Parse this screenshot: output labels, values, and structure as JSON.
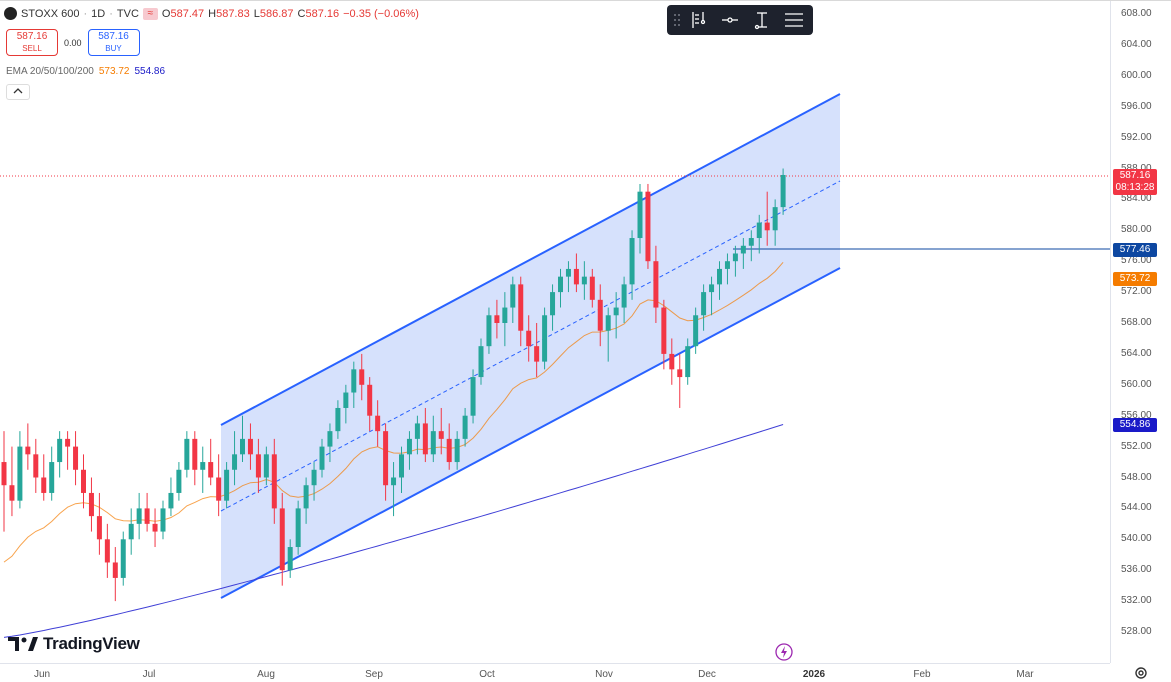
{
  "header": {
    "symbol": "STOXX 600",
    "interval": "1D",
    "source": "TVC",
    "market_badge": "≈",
    "ohlc": [
      {
        "key": "O",
        "value": "587.47"
      },
      {
        "key": "H",
        "value": "587.83"
      },
      {
        "key": "L",
        "value": "586.87"
      },
      {
        "key": "C",
        "value": "587.16"
      }
    ],
    "change": "−0.35 (−0.06%)"
  },
  "trade": {
    "sell_price": "587.16",
    "sell_label": "SELL",
    "spread": "0.00",
    "buy_price": "587.16",
    "buy_label": "BUY"
  },
  "indicator": {
    "name": "EMA 20/50/100/200",
    "value1": "573.72",
    "value2": "554.86"
  },
  "collapse_icon": "chevron-up-icon",
  "toolbar": {
    "icons": [
      "drag-handle-icon",
      "text-tool-icon",
      "line-tool-icon",
      "measure-tool-icon",
      "settings-lines-icon"
    ]
  },
  "price_axis": {
    "ticks": [
      "608.00",
      "604.00",
      "600.00",
      "596.00",
      "592.00",
      "588.00",
      "584.00",
      "580.00",
      "576.00",
      "572.00",
      "568.00",
      "564.00",
      "560.00",
      "556.00",
      "552.00",
      "548.00",
      "544.00",
      "540.00",
      "536.00",
      "532.00",
      "528.00"
    ],
    "last_price": "587.16",
    "countdown": "08:13:28",
    "level_line": "577.46",
    "ema_fast": "573.72",
    "ema_slow": "554.86"
  },
  "time_axis": {
    "ticks": [
      {
        "label": "Jun",
        "bold": false
      },
      {
        "label": "Jul",
        "bold": false
      },
      {
        "label": "Aug",
        "bold": false
      },
      {
        "label": "Sep",
        "bold": false
      },
      {
        "label": "Oct",
        "bold": false
      },
      {
        "label": "Nov",
        "bold": false
      },
      {
        "label": "Dec",
        "bold": false
      },
      {
        "label": "2026",
        "bold": true
      },
      {
        "label": "Feb",
        "bold": false
      },
      {
        "label": "Mar",
        "bold": false
      }
    ]
  },
  "brand": {
    "logo_text": "TradingView"
  },
  "colors": {
    "up": "#26a69a",
    "down": "#f23645",
    "channel_line": "#2962ff",
    "channel_fill": "#cfdcfb",
    "ema_fast": "#f57c00",
    "ema_slow": "#3f3fd6",
    "level_line": "#0d47a1"
  },
  "chart_data": {
    "type": "candlestick",
    "title": "STOXX 600",
    "ylim": [
      526,
      610
    ],
    "candles_ohlc": [
      [
        550,
        554,
        541,
        547
      ],
      [
        547,
        552,
        543,
        545
      ],
      [
        545,
        554,
        544,
        552
      ],
      [
        552,
        555,
        549,
        551
      ],
      [
        551,
        553,
        546,
        548
      ],
      [
        548,
        551,
        545,
        546
      ],
      [
        546,
        552,
        545,
        550
      ],
      [
        550,
        554,
        548,
        553
      ],
      [
        553,
        554,
        549,
        552
      ],
      [
        552,
        554,
        547,
        549
      ],
      [
        549,
        551,
        544,
        546
      ],
      [
        546,
        548,
        541,
        543
      ],
      [
        543,
        546,
        538,
        540
      ],
      [
        540,
        542,
        535,
        537
      ],
      [
        537,
        539,
        532,
        535
      ],
      [
        535,
        541,
        534,
        540
      ],
      [
        540,
        544,
        538,
        542
      ],
      [
        542,
        546,
        540,
        544
      ],
      [
        544,
        546,
        541,
        542
      ],
      [
        542,
        544,
        539,
        541
      ],
      [
        541,
        545,
        540,
        544
      ],
      [
        544,
        548,
        543,
        546
      ],
      [
        546,
        550,
        545,
        549
      ],
      [
        549,
        554,
        548,
        553
      ],
      [
        553,
        554,
        547,
        549
      ],
      [
        549,
        552,
        546,
        550
      ],
      [
        550,
        553,
        547,
        548
      ],
      [
        548,
        551,
        543,
        545
      ],
      [
        545,
        550,
        544,
        549
      ],
      [
        549,
        554,
        547,
        551
      ],
      [
        551,
        556,
        550,
        553
      ],
      [
        553,
        555,
        549,
        551
      ],
      [
        551,
        553,
        546,
        548
      ],
      [
        548,
        552,
        547,
        551
      ],
      [
        551,
        553,
        542,
        544
      ],
      [
        544,
        546,
        534,
        536
      ],
      [
        536,
        540,
        535,
        539
      ],
      [
        539,
        545,
        538,
        544
      ],
      [
        544,
        548,
        542,
        547
      ],
      [
        547,
        550,
        545,
        549
      ],
      [
        549,
        553,
        548,
        552
      ],
      [
        552,
        555,
        550,
        554
      ],
      [
        554,
        558,
        553,
        557
      ],
      [
        557,
        560,
        555,
        559
      ],
      [
        559,
        563,
        557,
        562
      ],
      [
        562,
        564,
        558,
        560
      ],
      [
        560,
        561,
        554,
        556
      ],
      [
        556,
        558,
        552,
        554
      ],
      [
        554,
        555,
        545,
        547
      ],
      [
        547,
        550,
        543,
        548
      ],
      [
        548,
        552,
        546,
        551
      ],
      [
        551,
        554,
        549,
        553
      ],
      [
        553,
        556,
        551,
        555
      ],
      [
        555,
        557,
        550,
        551
      ],
      [
        551,
        556,
        550,
        554
      ],
      [
        554,
        557,
        551,
        553
      ],
      [
        553,
        555,
        549,
        550
      ],
      [
        550,
        554,
        549,
        553
      ],
      [
        553,
        557,
        552,
        556
      ],
      [
        556,
        562,
        555,
        561
      ],
      [
        561,
        566,
        560,
        565
      ],
      [
        565,
        570,
        564,
        569
      ],
      [
        569,
        571,
        566,
        568
      ],
      [
        568,
        572,
        565,
        570
      ],
      [
        570,
        574,
        568,
        573
      ],
      [
        573,
        574,
        565,
        567
      ],
      [
        567,
        569,
        563,
        565
      ],
      [
        565,
        568,
        561,
        563
      ],
      [
        563,
        570,
        562,
        569
      ],
      [
        569,
        573,
        567,
        572
      ],
      [
        572,
        575,
        570,
        574
      ],
      [
        574,
        576,
        572,
        575
      ],
      [
        575,
        577,
        572,
        573
      ],
      [
        573,
        576,
        571,
        574
      ],
      [
        574,
        575,
        570,
        571
      ],
      [
        571,
        573,
        565,
        567
      ],
      [
        567,
        570,
        563,
        569
      ],
      [
        569,
        572,
        566,
        570
      ],
      [
        570,
        574,
        568,
        573
      ],
      [
        573,
        580,
        571,
        579
      ],
      [
        579,
        586,
        577,
        585
      ],
      [
        585,
        586,
        575,
        576
      ],
      [
        576,
        578,
        568,
        570
      ],
      [
        570,
        571,
        562,
        564
      ],
      [
        564,
        566,
        560,
        562
      ],
      [
        562,
        564,
        557,
        561
      ],
      [
        561,
        566,
        560,
        565
      ],
      [
        565,
        570,
        564,
        569
      ],
      [
        569,
        573,
        567,
        572
      ],
      [
        572,
        574,
        569,
        573
      ],
      [
        573,
        576,
        571,
        575
      ],
      [
        575,
        577,
        573,
        576
      ],
      [
        576,
        578,
        574,
        577
      ],
      [
        577,
        579,
        575,
        578
      ],
      [
        578,
        580,
        576,
        579
      ],
      [
        579,
        582,
        577,
        581
      ],
      [
        581,
        585,
        578,
        580
      ],
      [
        580,
        584,
        578,
        583
      ],
      [
        583,
        588,
        582,
        587.16
      ]
    ]
  }
}
